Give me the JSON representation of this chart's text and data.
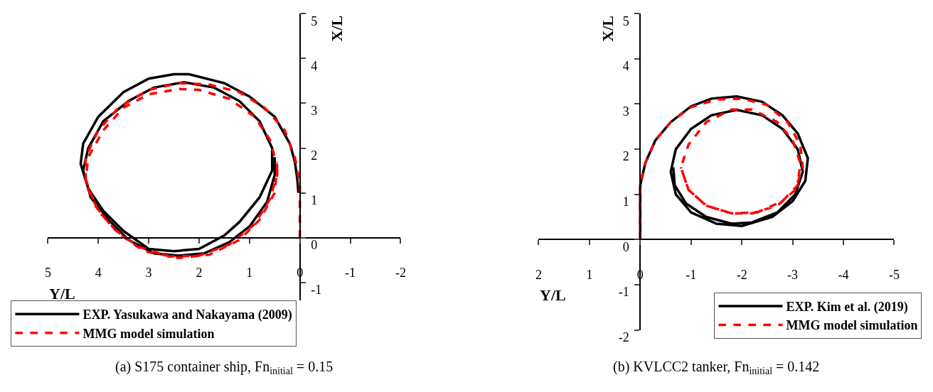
{
  "chart_data": [
    {
      "type": "line",
      "xlabel": "Y/L",
      "ylabel": "X/L",
      "xlim": [
        5,
        -2
      ],
      "ylim": [
        -1.4,
        5
      ],
      "xticks": [
        5,
        4,
        3,
        2,
        1,
        0,
        -1,
        -2
      ],
      "yticks": [
        -1,
        0,
        1,
        2,
        3,
        4,
        5
      ],
      "grid": false,
      "legend": "bottom",
      "series": [
        {
          "name": "EXP. Yasukawa and Nakayama (2009)",
          "color": "#000000",
          "line_style": "solid",
          "x": [
            0.03,
            0.05,
            0.1,
            0.2,
            0.5,
            1.0,
            1.5,
            2.2,
            2.5,
            3.0,
            3.5,
            4.0,
            4.3,
            4.35,
            4.2,
            3.9,
            3.5,
            3.0,
            2.5,
            2.0,
            1.5,
            1.2,
            0.8,
            0.55,
            0.55,
            0.8,
            1.2,
            1.7,
            2.3,
            2.9,
            3.4,
            3.9,
            4.2,
            4.3,
            4.15,
            3.8,
            3.4,
            2.9,
            2.4,
            1.9,
            1.4,
            1.0,
            0.65,
            0.5,
            0.5
          ],
          "values": [
            1.0,
            1.3,
            1.7,
            2.1,
            2.7,
            3.15,
            3.45,
            3.65,
            3.65,
            3.55,
            3.25,
            2.7,
            2.1,
            1.65,
            1.1,
            0.6,
            0.15,
            -0.25,
            -0.3,
            -0.25,
            0.05,
            0.35,
            0.9,
            1.5,
            2.0,
            2.6,
            3.05,
            3.35,
            3.47,
            3.35,
            3.05,
            2.6,
            2.0,
            1.5,
            0.9,
            0.4,
            -0.05,
            -0.35,
            -0.4,
            -0.35,
            -0.1,
            0.25,
            0.8,
            1.4,
            1.8
          ]
        },
        {
          "name": "MMG model simulation",
          "color": "#ff0000",
          "line_style": "dashed",
          "x": [
            0,
            0,
            0.1,
            0.3,
            0.7,
            1.2,
            1.8,
            2.4,
            3.0,
            3.6,
            4.0,
            4.25,
            4.25,
            4.0,
            3.6,
            3.1,
            2.4,
            1.8,
            1.2,
            0.8,
            0.5,
            0.45,
            0.6,
            0.9,
            1.4,
            2.0,
            2.4,
            3.0,
            3.5,
            3.9,
            4.2,
            4.25,
            4.05,
            3.7,
            3.2,
            2.6,
            2.0,
            1.4,
            0.9,
            0.6,
            0.45,
            0.45
          ],
          "values": [
            0,
            1.2,
            1.8,
            2.4,
            2.9,
            3.25,
            3.42,
            3.45,
            3.3,
            2.9,
            2.4,
            1.8,
            1.2,
            0.6,
            0.1,
            -0.3,
            -0.45,
            -0.38,
            -0.05,
            0.4,
            1.0,
            1.6,
            2.2,
            2.7,
            3.1,
            3.3,
            3.32,
            3.2,
            2.9,
            2.4,
            1.8,
            1.3,
            0.7,
            0.2,
            -0.2,
            -0.42,
            -0.4,
            -0.15,
            0.3,
            0.85,
            1.4,
            1.7
          ]
        }
      ],
      "annotations": [
        "(a) S175 container ship, Fn$_{initial}$ = 0.15"
      ]
    },
    {
      "type": "line",
      "xlabel": "Y/L",
      "ylabel": "X/L",
      "xlim": [
        2,
        -5
      ],
      "ylim": [
        -2,
        5
      ],
      "xticks": [
        2,
        1,
        0,
        -1,
        -2,
        -3,
        -4,
        -5
      ],
      "yticks": [
        -2,
        -1,
        0,
        1,
        2,
        3,
        4,
        5
      ],
      "grid": false,
      "legend": "bottom right",
      "series": [
        {
          "name": "EXP. Kim et al. (2019)",
          "color": "#000000",
          "line_style": "solid",
          "x": [
            0,
            0,
            -0.1,
            -0.3,
            -0.6,
            -1.0,
            -1.4,
            -1.9,
            -2.4,
            -2.8,
            -3.1,
            -3.3,
            -3.25,
            -3.0,
            -2.6,
            -2.0,
            -1.5,
            -1.0,
            -0.7,
            -0.6,
            -0.7,
            -1.0,
            -1.4,
            -1.9,
            -2.4,
            -2.8,
            -3.1,
            -3.2,
            -3.05,
            -2.7,
            -2.2,
            -1.8,
            -1.3,
            -0.9,
            -0.68,
            -0.65
          ],
          "values": [
            0,
            1.2,
            1.7,
            2.2,
            2.6,
            2.95,
            3.12,
            3.17,
            3.05,
            2.75,
            2.35,
            1.8,
            1.3,
            0.85,
            0.5,
            0.3,
            0.35,
            0.6,
            1.0,
            1.5,
            2.0,
            2.45,
            2.75,
            2.87,
            2.75,
            2.45,
            2.0,
            1.5,
            1.0,
            0.6,
            0.38,
            0.35,
            0.5,
            0.8,
            1.2,
            1.6
          ]
        },
        {
          "name": "MMG model simulation",
          "color": "#ff0000",
          "line_style": "dashed",
          "x": [
            0,
            0,
            -0.1,
            -0.3,
            -0.6,
            -1.0,
            -1.5,
            -2.0,
            -2.5,
            -2.9,
            -3.15,
            -3.2,
            -3.05,
            -2.7,
            -2.2,
            -1.8,
            -1.3,
            -0.95,
            -0.8,
            -0.95,
            -1.3,
            -1.8,
            -2.2,
            -2.7,
            -3.0,
            -3.15,
            -3.1,
            -2.8,
            -2.3,
            -1.8,
            -1.3,
            -0.95,
            -0.8
          ],
          "values": [
            0,
            1.2,
            1.7,
            2.2,
            2.6,
            2.93,
            3.1,
            3.12,
            2.98,
            2.6,
            2.1,
            1.6,
            1.1,
            0.75,
            0.58,
            0.58,
            0.75,
            1.1,
            1.6,
            2.1,
            2.6,
            2.88,
            2.88,
            2.6,
            2.2,
            1.7,
            1.2,
            0.85,
            0.6,
            0.58,
            0.75,
            1.1,
            1.6
          ]
        }
      ],
      "annotations": [
        "(b) KVLCC2 tanker, Fn$_{initial}$ = 0.142"
      ]
    }
  ]
}
